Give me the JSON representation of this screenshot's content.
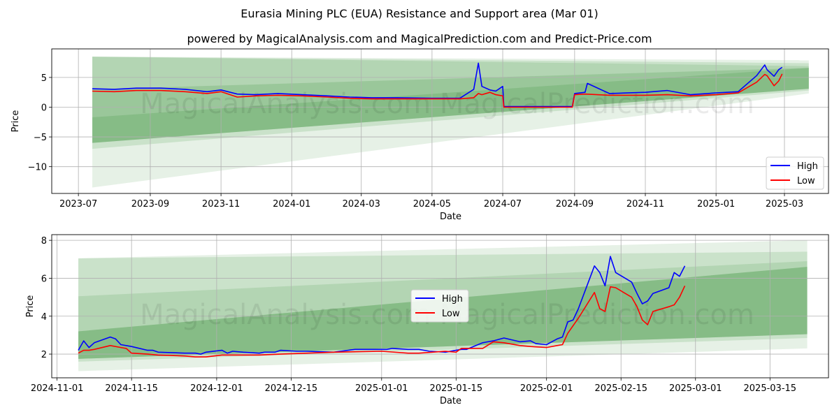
{
  "header": {
    "title": "Eurasia Mining PLC (EUA) Resistance and Support area (Mar 01)",
    "subtitle": "powered by MagicalAnalysis.com and MagicalPrediction.com and Predict-Price.com"
  },
  "watermark": "MagicalAnalysis.com    MagicalPrediction.com",
  "colors": {
    "high": "#0000ff",
    "low": "#ff0000",
    "band": "#2e8b2e",
    "grid": "#b0b0b0"
  },
  "chart_data": [
    {
      "type": "line",
      "xlabel": "Date",
      "ylabel": "Price",
      "x_ticks": [
        "2023-07",
        "2023-09",
        "2023-11",
        "2024-01",
        "2024-03",
        "2024-05",
        "2024-07",
        "2024-09",
        "2024-11",
        "2025-01",
        "2025-03"
      ],
      "y_ticks": [
        "5",
        "0",
        "−5",
        "−10"
      ],
      "ylim": [
        -14.5,
        9.8
      ],
      "xlim": [
        "2023-06-08",
        "2025-04-08"
      ],
      "grid": true,
      "legend_position": "lower-right",
      "series": [
        {
          "name": "High",
          "color": "#0000ff",
          "x": [
            "2023-07-13",
            "2023-08-01",
            "2023-08-20",
            "2023-09-10",
            "2023-10-01",
            "2023-10-20",
            "2023-11-01",
            "2023-11-15",
            "2023-12-01",
            "2023-12-20",
            "2024-01-10",
            "2024-02-01",
            "2024-02-20",
            "2024-03-10",
            "2024-04-01",
            "2024-05-01",
            "2024-05-25",
            "2024-06-06",
            "2024-06-10",
            "2024-06-13",
            "2024-06-20",
            "2024-06-25",
            "2024-07-01",
            "2024-07-02",
            "2024-08-30",
            "2024-09-01",
            "2024-09-10",
            "2024-09-12",
            "2024-10-01",
            "2024-11-01",
            "2024-11-20",
            "2024-12-10",
            "2025-01-01",
            "2025-01-20",
            "2025-02-05",
            "2025-02-12",
            "2025-02-14",
            "2025-02-20",
            "2025-02-24",
            "2025-02-27"
          ],
          "values": [
            3.1,
            3.0,
            3.2,
            3.2,
            3.0,
            2.6,
            2.9,
            2.2,
            2.1,
            2.3,
            2.1,
            1.9,
            1.7,
            1.6,
            1.6,
            1.5,
            1.5,
            3.0,
            7.4,
            3.5,
            2.9,
            2.7,
            3.5,
            0.1,
            0.1,
            2.3,
            2.5,
            4.0,
            2.3,
            2.5,
            2.8,
            2.1,
            2.4,
            2.6,
            5.3,
            7.1,
            6.3,
            5.2,
            6.3,
            6.7
          ]
        },
        {
          "name": "Low",
          "color": "#ff0000",
          "x": [
            "2023-07-13",
            "2023-08-01",
            "2023-08-20",
            "2023-09-10",
            "2023-10-01",
            "2023-10-20",
            "2023-11-01",
            "2023-11-15",
            "2023-12-01",
            "2023-12-20",
            "2024-01-10",
            "2024-02-01",
            "2024-02-20",
            "2024-03-10",
            "2024-04-01",
            "2024-05-01",
            "2024-05-25",
            "2024-06-06",
            "2024-06-10",
            "2024-06-13",
            "2024-06-20",
            "2024-06-25",
            "2024-07-01",
            "2024-07-02",
            "2024-08-30",
            "2024-09-01",
            "2024-09-10",
            "2024-10-01",
            "2024-11-01",
            "2024-11-20",
            "2024-12-10",
            "2025-01-01",
            "2025-01-20",
            "2025-02-05",
            "2025-02-12",
            "2025-02-14",
            "2025-02-20",
            "2025-02-24",
            "2025-02-27"
          ],
          "values": [
            2.7,
            2.6,
            2.8,
            2.8,
            2.6,
            2.3,
            2.6,
            1.7,
            1.9,
            2.0,
            1.9,
            1.7,
            1.5,
            1.4,
            1.4,
            1.4,
            1.4,
            1.6,
            2.3,
            2.1,
            2.5,
            2.1,
            1.9,
            0.0,
            0.0,
            2.1,
            2.2,
            2.0,
            2.0,
            2.1,
            1.9,
            2.1,
            2.4,
            4.2,
            5.5,
            5.3,
            3.6,
            4.4,
            5.6
          ]
        }
      ],
      "bands": [
        {
          "x": [
            "2023-07-13",
            "2025-03-22"
          ],
          "upper": [
            8.5,
            7.9
          ],
          "lower": [
            -13.5,
            2.3
          ],
          "opacity": 0.12
        },
        {
          "x": [
            "2023-07-13",
            "2025-03-22"
          ],
          "upper": [
            8.5,
            7.4
          ],
          "lower": [
            -7.0,
            2.8
          ],
          "opacity": 0.15
        },
        {
          "x": [
            "2023-07-13",
            "2025-03-22"
          ],
          "upper": [
            8.5,
            6.9
          ],
          "lower": [
            -6.0,
            3.1
          ],
          "opacity": 0.15
        },
        {
          "x": [
            "2023-07-13",
            "2025-03-22"
          ],
          "upper": [
            3.0,
            6.6
          ],
          "lower": [
            -6.0,
            3.1
          ],
          "opacity": 0.18
        },
        {
          "x": [
            "2023-07-13",
            "2025-03-22"
          ],
          "upper": [
            -1.7,
            6.6
          ],
          "lower": [
            -6.0,
            3.1
          ],
          "opacity": 0.18
        }
      ]
    },
    {
      "type": "line",
      "xlabel": "Date",
      "ylabel": "Price",
      "x_ticks": [
        "2024-11-01",
        "2024-11-15",
        "2024-12-01",
        "2024-12-15",
        "2025-01-01",
        "2025-01-15",
        "2025-02-01",
        "2025-02-15",
        "2025-03-01",
        "2025-03-15"
      ],
      "y_ticks": [
        "8",
        "6",
        "4",
        "2"
      ],
      "ylim": [
        0.75,
        8.3
      ],
      "xlim": [
        "2024-10-31",
        "2025-03-26"
      ],
      "grid": true,
      "legend_position": "center",
      "series": [
        {
          "name": "High",
          "color": "#0000ff",
          "x": [
            "2024-11-05",
            "2024-11-06",
            "2024-11-07",
            "2024-11-08",
            "2024-11-11",
            "2024-11-12",
            "2024-11-13",
            "2024-11-15",
            "2024-11-18",
            "2024-11-19",
            "2024-11-20",
            "2024-11-25",
            "2024-11-27",
            "2024-11-28",
            "2024-11-29",
            "2024-12-02",
            "2024-12-03",
            "2024-12-04",
            "2024-12-06",
            "2024-12-09",
            "2024-12-10",
            "2024-12-11",
            "2024-12-12",
            "2024-12-13",
            "2024-12-16",
            "2024-12-18",
            "2024-12-23",
            "2024-12-27",
            "2024-12-30",
            "2025-01-02",
            "2025-01-03",
            "2025-01-06",
            "2025-01-08",
            "2025-01-10",
            "2025-01-13",
            "2025-01-15",
            "2025-01-16",
            "2025-01-17",
            "2025-01-20",
            "2025-01-21",
            "2025-01-22",
            "2025-01-24",
            "2025-01-27",
            "2025-01-29",
            "2025-01-30",
            "2025-02-01",
            "2025-02-03",
            "2025-02-04",
            "2025-02-05",
            "2025-02-06",
            "2025-02-07",
            "2025-02-10",
            "2025-02-11",
            "2025-02-12",
            "2025-02-13",
            "2025-02-14",
            "2025-02-17",
            "2025-02-18",
            "2025-02-19",
            "2025-02-20",
            "2025-02-21",
            "2025-02-24",
            "2025-02-25",
            "2025-02-26",
            "2025-02-27"
          ],
          "values": [
            2.2,
            2.7,
            2.35,
            2.6,
            2.9,
            2.8,
            2.5,
            2.4,
            2.2,
            2.2,
            2.1,
            2.05,
            2.05,
            2.0,
            2.1,
            2.2,
            2.05,
            2.15,
            2.1,
            2.05,
            2.1,
            2.1,
            2.1,
            2.2,
            2.15,
            2.15,
            2.1,
            2.25,
            2.25,
            2.25,
            2.3,
            2.25,
            2.25,
            2.15,
            2.1,
            2.2,
            2.25,
            2.25,
            2.6,
            2.65,
            2.7,
            2.85,
            2.65,
            2.7,
            2.55,
            2.5,
            2.8,
            2.9,
            3.7,
            3.8,
            4.4,
            6.65,
            6.3,
            5.6,
            7.15,
            6.3,
            5.8,
            5.2,
            4.65,
            4.8,
            5.2,
            5.5,
            6.3,
            6.1,
            6.65
          ]
        },
        {
          "name": "Low",
          "color": "#ff0000",
          "x": [
            "2024-11-05",
            "2024-11-06",
            "2024-11-07",
            "2024-11-08",
            "2024-11-11",
            "2024-11-13",
            "2024-11-14",
            "2024-11-15",
            "2024-11-18",
            "2024-11-20",
            "2024-11-25",
            "2024-11-27",
            "2024-11-29",
            "2024-12-02",
            "2024-12-04",
            "2024-12-09",
            "2024-12-13",
            "2024-12-18",
            "2024-12-23",
            "2025-01-01",
            "2025-01-06",
            "2025-01-08",
            "2025-01-13",
            "2025-01-15",
            "2025-01-16",
            "2025-01-20",
            "2025-01-22",
            "2025-01-24",
            "2025-01-27",
            "2025-01-29",
            "2025-02-01",
            "2025-02-03",
            "2025-02-04",
            "2025-02-05",
            "2025-02-07",
            "2025-02-10",
            "2025-02-11",
            "2025-02-12",
            "2025-02-13",
            "2025-02-14",
            "2025-02-17",
            "2025-02-18",
            "2025-02-19",
            "2025-02-20",
            "2025-02-21",
            "2025-02-24",
            "2025-02-25",
            "2025-02-26",
            "2025-02-27"
          ],
          "values": [
            2.05,
            2.2,
            2.2,
            2.25,
            2.45,
            2.35,
            2.3,
            2.05,
            2.0,
            1.95,
            1.9,
            1.85,
            1.85,
            1.95,
            1.95,
            1.95,
            2.0,
            2.05,
            2.1,
            2.15,
            2.05,
            2.05,
            2.15,
            2.1,
            2.3,
            2.3,
            2.65,
            2.6,
            2.45,
            2.4,
            2.35,
            2.45,
            2.5,
            3.1,
            3.9,
            5.25,
            4.4,
            4.25,
            5.55,
            5.5,
            5.0,
            4.5,
            3.8,
            3.55,
            4.25,
            4.5,
            4.6,
            5.0,
            5.6
          ]
        }
      ],
      "bands": [
        {
          "x": [
            "2024-11-05",
            "2025-03-22"
          ],
          "upper": [
            7.05,
            8.0
          ],
          "lower": [
            1.1,
            2.3
          ],
          "opacity": 0.12
        },
        {
          "x": [
            "2024-11-05",
            "2025-03-22"
          ],
          "upper": [
            7.05,
            7.4
          ],
          "lower": [
            1.6,
            2.85
          ],
          "opacity": 0.15
        },
        {
          "x": [
            "2024-11-05",
            "2025-03-22"
          ],
          "upper": [
            5.05,
            6.9
          ],
          "lower": [
            1.75,
            3.05
          ],
          "opacity": 0.15
        },
        {
          "x": [
            "2024-11-05",
            "2025-03-22"
          ],
          "upper": [
            3.2,
            6.6
          ],
          "lower": [
            1.75,
            3.05
          ],
          "opacity": 0.18
        },
        {
          "x": [
            "2024-11-05",
            "2025-03-22"
          ],
          "upper": [
            3.2,
            6.6
          ],
          "lower": [
            1.75,
            3.05
          ],
          "opacity": 0.18
        }
      ]
    }
  ]
}
